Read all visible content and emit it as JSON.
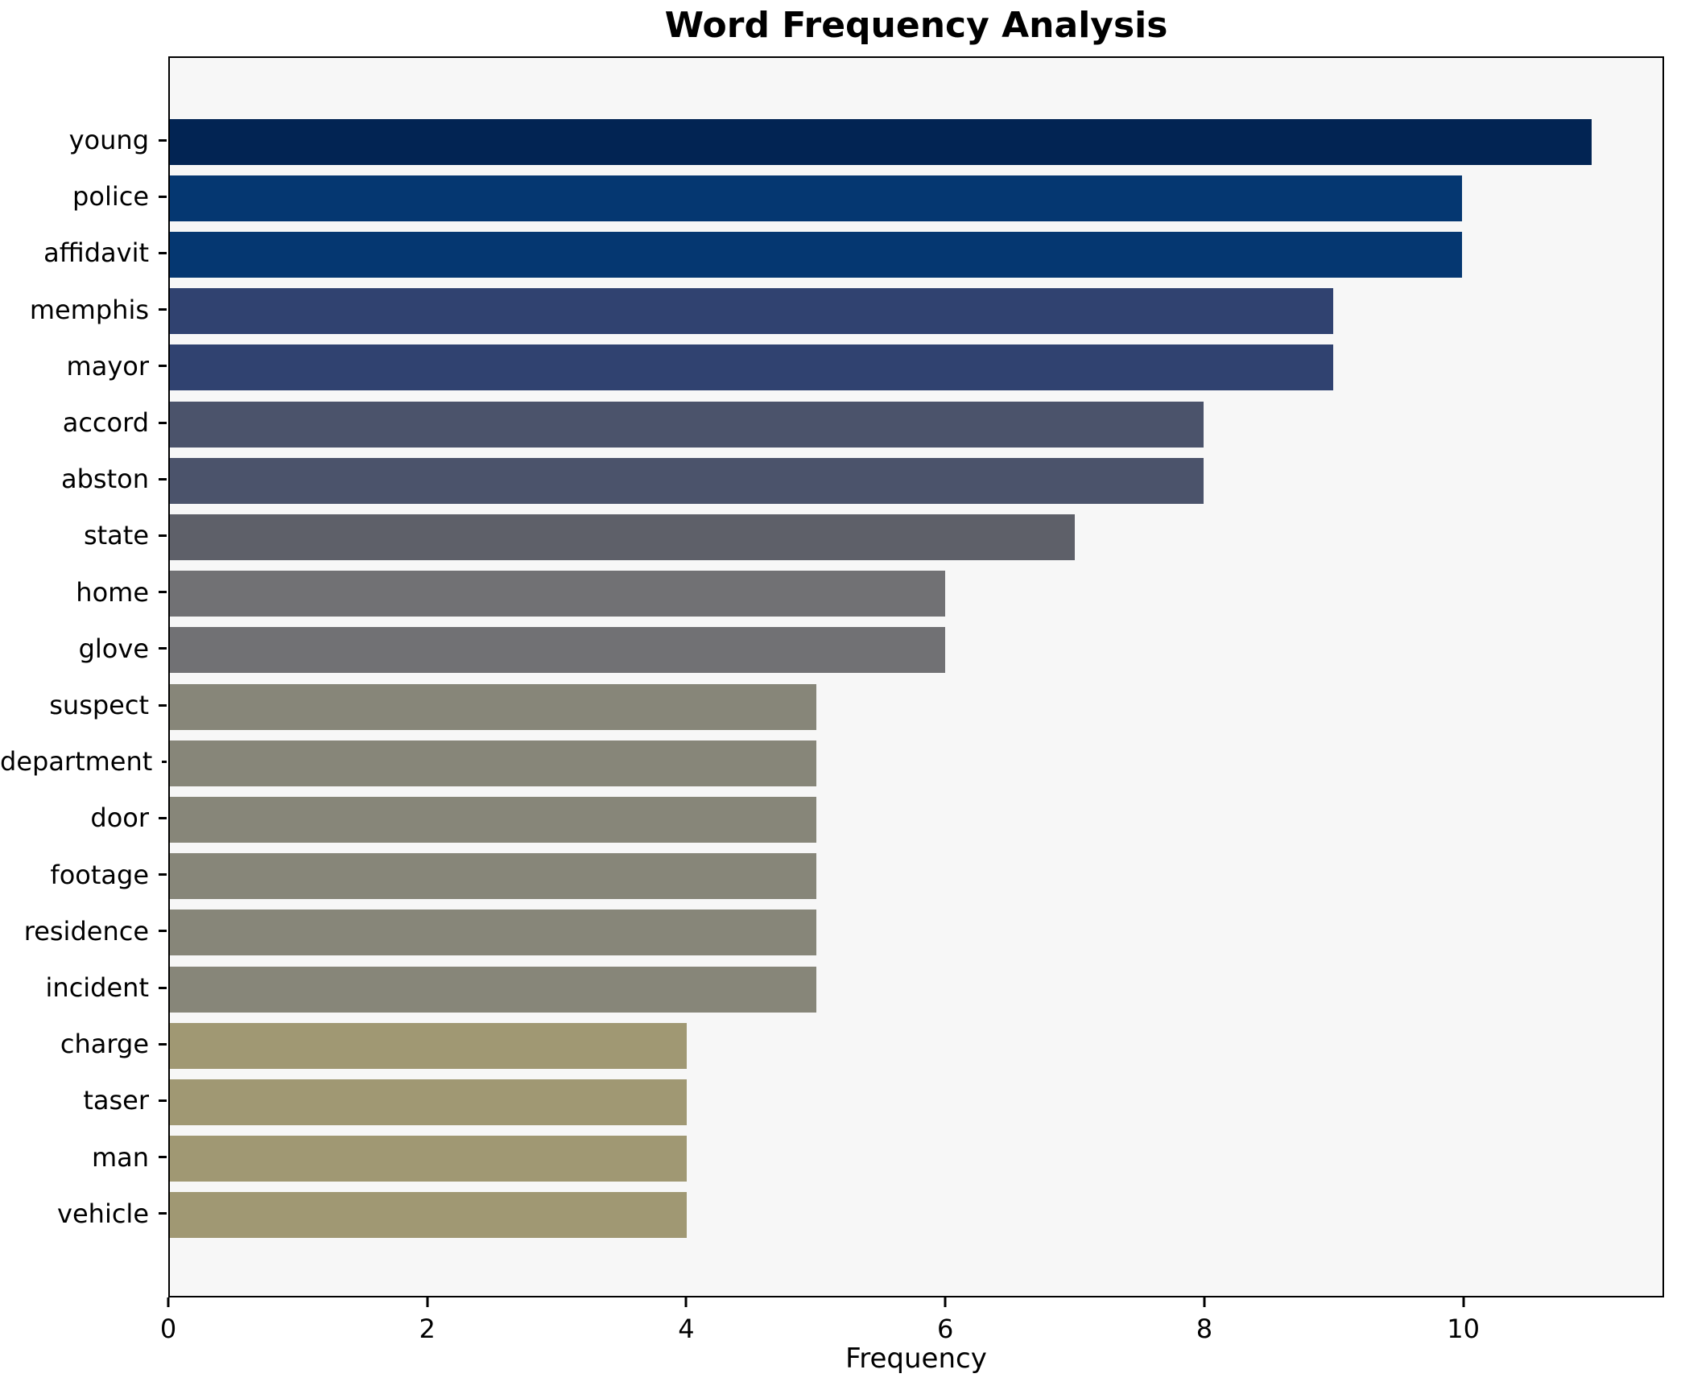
{
  "chart_data": {
    "type": "bar",
    "orientation": "horizontal",
    "title": "Word Frequency Analysis",
    "xlabel": "Frequency",
    "ylabel": "",
    "categories": [
      "young",
      "police",
      "affidavit",
      "memphis",
      "mayor",
      "accord",
      "abston",
      "state",
      "home",
      "glove",
      "suspect",
      "department",
      "door",
      "footage",
      "residence",
      "incident",
      "charge",
      "taser",
      "man",
      "vehicle"
    ],
    "values": [
      11,
      10,
      10,
      9,
      9,
      8,
      8,
      7,
      6,
      6,
      5,
      5,
      5,
      5,
      5,
      5,
      4,
      4,
      4,
      4
    ],
    "bar_colors": [
      "#022453",
      "#053771",
      "#053771",
      "#304270",
      "#304270",
      "#4b536b",
      "#4b536b",
      "#5e6069",
      "#717174",
      "#717174",
      "#878679",
      "#878679",
      "#878679",
      "#878679",
      "#878679",
      "#878679",
      "#a09873",
      "#a09873",
      "#a09873",
      "#a09873"
    ],
    "xlim": [
      0,
      11.55
    ],
    "xticks": [
      0,
      2,
      4,
      6,
      8,
      10
    ],
    "grid": false,
    "legend": null,
    "plot_background": "#f7f7f7",
    "figure_background": "#ffffff",
    "spine_color": "#000000",
    "bar_height_fraction": 0.8
  }
}
